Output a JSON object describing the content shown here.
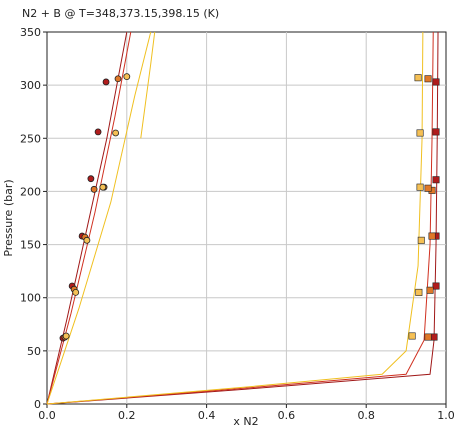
{
  "chart_data": {
    "type": "scatter",
    "title": "N2 + B @ T=348,373.15,398.15 (K)",
    "xlabel": "x N2",
    "ylabel": "Pressure (bar)",
    "xlim": [
      0,
      1
    ],
    "ylim": [
      0,
      350
    ],
    "xticks": [
      "0.0",
      "0.2",
      "0.4",
      "0.6",
      "0.8",
      "1.0"
    ],
    "yticks": [
      "0",
      "50",
      "100",
      "150",
      "200",
      "250",
      "300",
      "350"
    ],
    "grid": true,
    "colors": {
      "dark_red": "#a01818",
      "red": "#d03020",
      "orange": "#e08a30",
      "gold": "#f0c020",
      "marker_dark": "#b01c1c",
      "marker_mid": "#e07828",
      "marker_light": "#f5c055"
    },
    "series": [
      {
        "temperature": 348,
        "color": "#a01818",
        "points_x": [
          0.04,
          0.063,
          0.088,
          0.11,
          0.128,
          0.148
        ],
        "points_y": [
          62,
          111,
          158,
          212,
          256,
          303
        ],
        "marker": "circle",
        "bubble_line_x": [
          0,
          0.05,
          0.1,
          0.15,
          0.2
        ],
        "bubble_line_y": [
          0,
          80,
          165,
          250,
          350
        ],
        "right_points_x": [
          0.97,
          0.975,
          0.975,
          0.975,
          0.975,
          0.975
        ],
        "right_points_y": [
          63,
          111,
          158,
          211,
          256,
          303
        ]
      },
      {
        "temperature": 373.15,
        "color": "#e07828",
        "points_x": [
          0.045,
          0.068,
          0.095,
          0.118,
          0.143,
          0.178
        ],
        "points_y": [
          63,
          108,
          157,
          202,
          204,
          306
        ],
        "marker": "circle",
        "bubble_line_x": [
          0,
          0.06,
          0.12,
          0.17,
          0.21
        ],
        "bubble_line_y": [
          0,
          85,
          180,
          270,
          350
        ],
        "right_points_x": [
          0.955,
          0.96,
          0.965,
          0.965,
          0.955,
          0.955
        ],
        "right_points_y": [
          63,
          107,
          158,
          201,
          203,
          306
        ]
      },
      {
        "temperature": 398.15,
        "color": "#f0c020",
        "points_x": [
          0.048,
          0.072,
          0.1,
          0.14,
          0.172,
          0.2
        ],
        "points_y": [
          64,
          105,
          154,
          204,
          255,
          308
        ],
        "marker": "circle",
        "bubble_line_x": [
          0,
          0.08,
          0.16,
          0.22,
          0.26
        ],
        "bubble_line_y": [
          0,
          90,
          190,
          290,
          350
        ],
        "right_points_x": [
          0.915,
          0.932,
          0.938,
          0.935,
          0.935,
          0.93
        ],
        "right_points_y": [
          64,
          105,
          154,
          204,
          255,
          307
        ]
      }
    ]
  }
}
